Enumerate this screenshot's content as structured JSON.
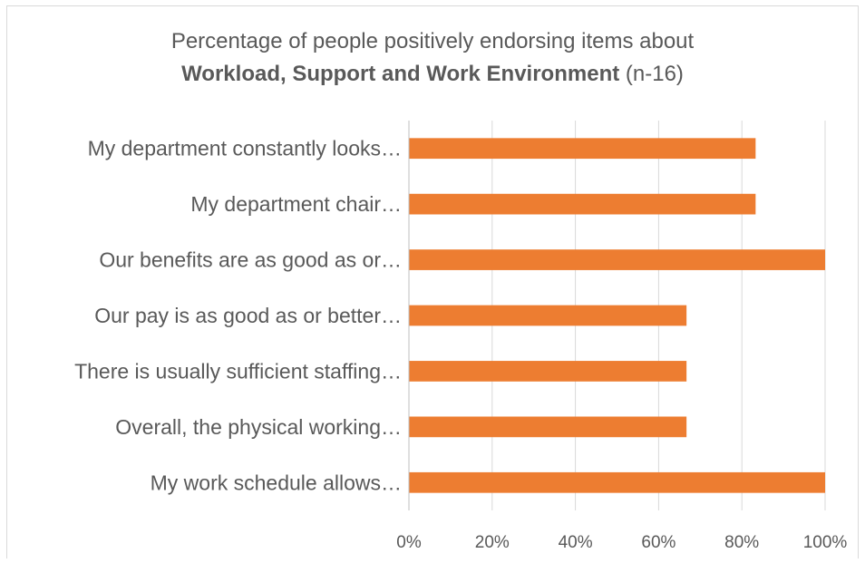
{
  "chart_data": {
    "type": "bar",
    "orientation": "horizontal",
    "title": {
      "line1": "Percentage of people positively endorsing items about",
      "line2_bold": "Workload, Support and Work Environment",
      "line2_rest": " (n-16)"
    },
    "categories": [
      "My department constantly looks…",
      "My department chair…",
      "Our benefits are as good as or…",
      "Our pay is as good as or better…",
      "There is usually sufficient staffing…",
      "Overall, the physical working…",
      "My work schedule allows…"
    ],
    "values": [
      83.3,
      83.3,
      100,
      66.7,
      66.7,
      66.7,
      100
    ],
    "xlim": [
      0,
      100
    ],
    "xticks": [
      "0%",
      "20%",
      "40%",
      "60%",
      "80%",
      "100%"
    ],
    "grid": true,
    "legend": "none",
    "bar_color": "#ed7d31",
    "grid_color": "#d9d9d9"
  }
}
